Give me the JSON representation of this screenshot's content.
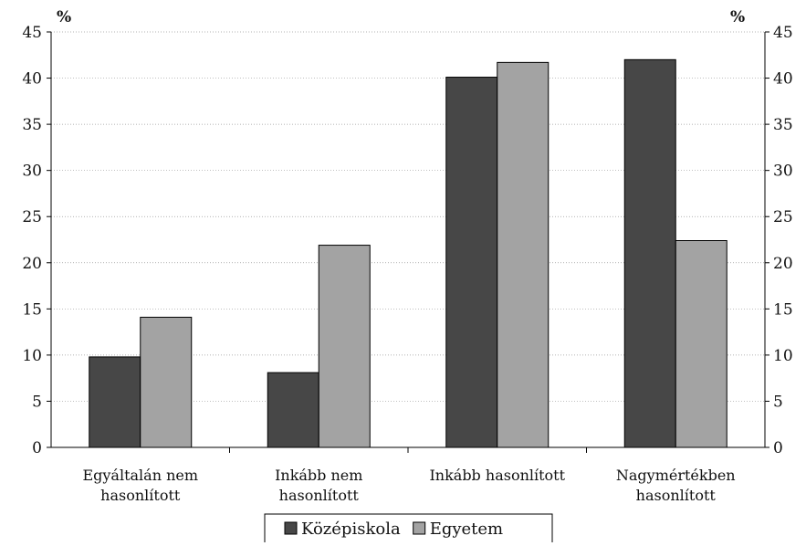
{
  "chart_data": {
    "type": "bar",
    "title": "",
    "y_unit_left": "%",
    "y_unit_right": "%",
    "categories": [
      [
        "Egyáltalán nem",
        "hasonlított"
      ],
      [
        "Inkább nem",
        "hasonlított"
      ],
      [
        "Inkább hasonlított"
      ],
      [
        "Nagymértékben",
        "hasonlított"
      ]
    ],
    "series": [
      {
        "name": "Középiskola",
        "color": "#474747",
        "values": [
          9.8,
          8.1,
          40.1,
          42.0
        ]
      },
      {
        "name": "Egyetem",
        "color": "#a3a3a3",
        "values": [
          14.1,
          21.9,
          41.7,
          22.4
        ]
      }
    ],
    "ylim": [
      0,
      45
    ],
    "yticks": [
      0,
      5,
      10,
      15,
      20,
      25,
      30,
      35,
      40,
      45
    ],
    "grid": true,
    "legend_position": "bottom"
  }
}
